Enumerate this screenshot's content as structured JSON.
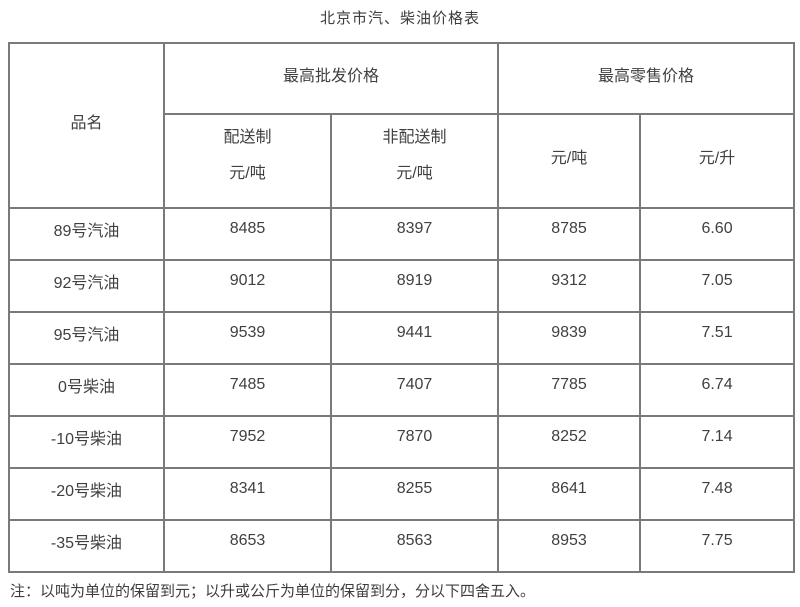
{
  "page": {
    "title": "北京市汽、柴油价格表",
    "note": "注：以吨为单位的保留到元；以升或公斤为单位的保留到分，分以下四舍五入。"
  },
  "table": {
    "product_header": "品名",
    "wholesale_group_header": "最高批发价格",
    "retail_group_header": "最高零售价格",
    "wholesale_delivery_name": "配送制",
    "wholesale_delivery_unit": "元/吨",
    "wholesale_nondelivery_name": "非配送制",
    "wholesale_nondelivery_unit": "元/吨",
    "retail_ton_unit": "元/吨",
    "retail_liter_unit": "元/升",
    "rows": [
      {
        "product": "89号汽油",
        "wholesale_delivery": "8485",
        "wholesale_nondelivery": "8397",
        "retail_ton": "8785",
        "retail_liter": "6.60"
      },
      {
        "product": "92号汽油",
        "wholesale_delivery": "9012",
        "wholesale_nondelivery": "8919",
        "retail_ton": "9312",
        "retail_liter": "7.05"
      },
      {
        "product": "95号汽油",
        "wholesale_delivery": "9539",
        "wholesale_nondelivery": "9441",
        "retail_ton": "9839",
        "retail_liter": "7.51"
      },
      {
        "product": "0号柴油",
        "wholesale_delivery": "7485",
        "wholesale_nondelivery": "7407",
        "retail_ton": "7785",
        "retail_liter": "6.74"
      },
      {
        "product": "-10号柴油",
        "wholesale_delivery": "7952",
        "wholesale_nondelivery": "7870",
        "retail_ton": "8252",
        "retail_liter": "7.14"
      },
      {
        "product": "-20号柴油",
        "wholesale_delivery": "8341",
        "wholesale_nondelivery": "8255",
        "retail_ton": "8641",
        "retail_liter": "7.48"
      },
      {
        "product": "-35号柴油",
        "wholesale_delivery": "8653",
        "wholesale_nondelivery": "8563",
        "retail_ton": "8953",
        "retail_liter": "7.75"
      }
    ]
  }
}
